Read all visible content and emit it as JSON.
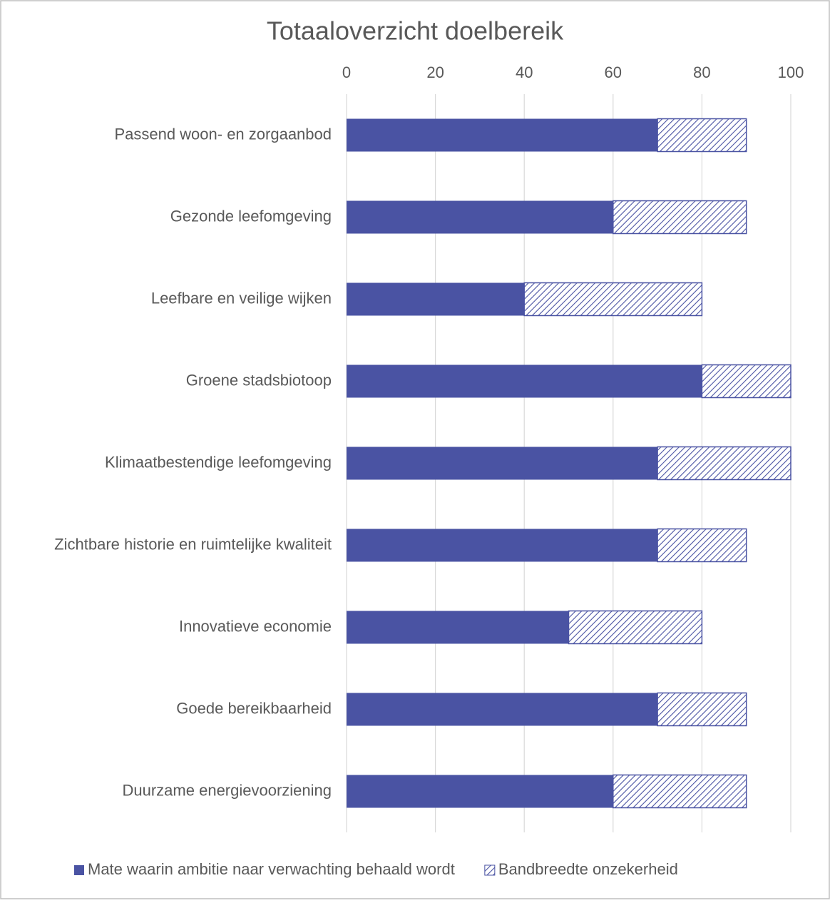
{
  "chart_data": {
    "type": "stacked-bar-horizontal",
    "title": "Totaaloverzicht doelbereik",
    "categories": [
      "Passend woon- en zorgaanbod",
      "Gezonde leefomgeving",
      "Leefbare en veilige wijken",
      "Groene stadsbiotoop",
      "Klimaatbestendige leefomgeving",
      "Zichtbare historie en ruimtelijke kwaliteit",
      "Innovatieve economie",
      "Goede bereikbaarheid",
      "Duurzame energievoorziening"
    ],
    "series": [
      {
        "name": "Mate waarin ambitie naar verwachting behaald wordt",
        "color": "#4a53a3",
        "fill": "solid",
        "values": [
          70,
          60,
          40,
          80,
          70,
          70,
          50,
          70,
          60
        ]
      },
      {
        "name": "Bandbreedte onzekerheid",
        "color": "#4a53a3",
        "fill": "hatch",
        "values": [
          20,
          30,
          40,
          20,
          30,
          20,
          30,
          20,
          30
        ]
      }
    ],
    "xlim": [
      0,
      100
    ],
    "xticks": [
      0,
      20,
      40,
      60,
      80,
      100
    ],
    "grid": true,
    "legend": "bottom"
  }
}
